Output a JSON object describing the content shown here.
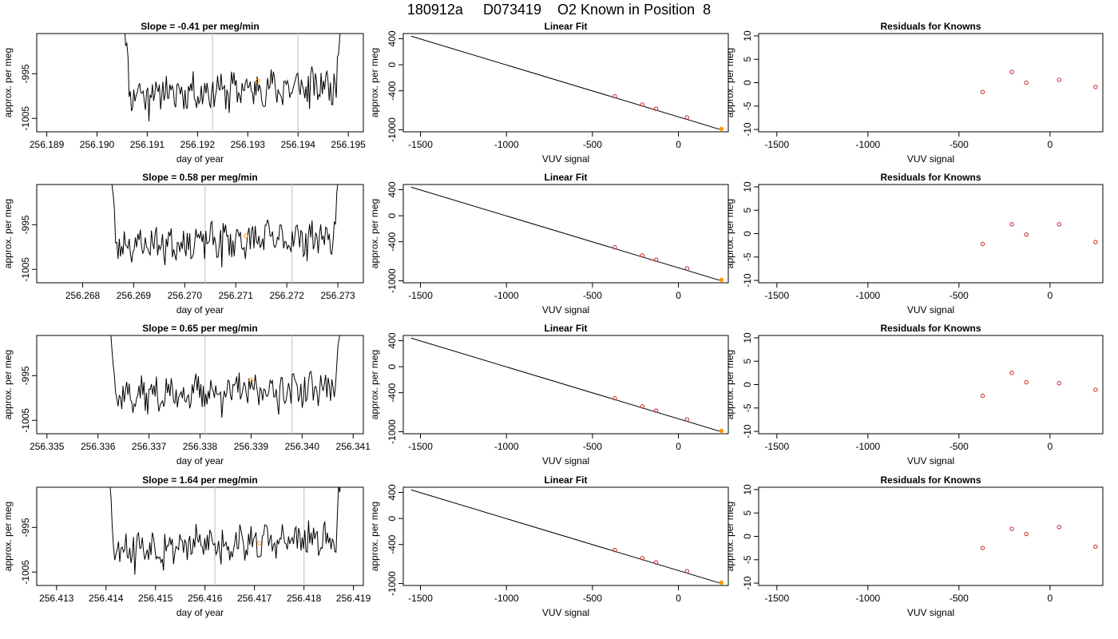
{
  "title": "180912a     D073419    O2 Known in Position  8",
  "chart_data": [
    {
      "row": 0,
      "trace": {
        "type": "line",
        "title": "Slope =  -0.41  per meg/min",
        "xlabel": "day of year",
        "ylabel": "approx. per meg",
        "xlim": [
          256.1888,
          256.1953
        ],
        "ylim": [
          -1008,
          -986
        ],
        "x_ticks": [
          "256.189",
          "256.190",
          "256.191",
          "256.192",
          "256.193",
          "256.194",
          "256.195"
        ],
        "y_ticks": [
          "-995",
          "-1005"
        ],
        "x_start": 256.1905,
        "x_end": 256.1949,
        "vlines": [
          256.1923,
          256.194
        ],
        "marker": {
          "x": 256.1932,
          "y": -996.6
        },
        "seed": 11
      },
      "fit": {
        "type": "line",
        "title": "Linear Fit",
        "xlabel": "VUV signal",
        "ylabel": "approx. per meg",
        "xlim": [
          -1600,
          290
        ],
        "ylim": [
          -1030,
          480
        ],
        "x_ticks": [
          "-1500",
          "-1000",
          "-500",
          "0"
        ],
        "y_ticks": [
          "400",
          "0",
          "-400",
          "-1000"
        ],
        "line": {
          "x": [
            -1555,
            250
          ],
          "y": [
            440,
            -1000
          ]
        },
        "points": {
          "x": [
            -370,
            -210,
            -130,
            50,
            250
          ],
          "y": [
            -485,
            -610,
            -675,
            -810,
            -985
          ]
        }
      },
      "residuals": {
        "type": "scatter",
        "title": "Residuals for Knowns",
        "xlabel": "VUV signal",
        "ylabel": "approx. per meg",
        "xlim": [
          -1600,
          290
        ],
        "ylim": [
          -10.5,
          10.5
        ],
        "x_ticks": [
          "-1500",
          "-1000",
          "-500",
          "0"
        ],
        "y_ticks": [
          "10",
          "5",
          "0",
          "-5",
          "-10"
        ],
        "points": {
          "x": [
            -370,
            -210,
            -130,
            50,
            250
          ],
          "y": [
            -2.0,
            2.3,
            0.0,
            0.6,
            -0.9
          ]
        }
      }
    },
    {
      "row": 1,
      "trace": {
        "type": "line",
        "title": "Slope =  0.58  per meg/min",
        "xlabel": "day of year",
        "ylabel": "approx. per meg",
        "xlim": [
          256.2671,
          256.2735
        ],
        "ylim": [
          -1008,
          -986
        ],
        "x_ticks": [
          "256.268",
          "256.269",
          "256.270",
          "256.271",
          "256.272",
          "256.273"
        ],
        "y_ticks": [
          "-995",
          "-1005"
        ],
        "x_start": 256.2685,
        "x_end": 256.2731,
        "vlines": [
          256.2704,
          256.2721
        ],
        "marker": {
          "x": 256.2712,
          "y": -997.5
        },
        "seed": 23
      },
      "fit": {
        "type": "line",
        "title": "Linear Fit",
        "xlabel": "VUV signal",
        "ylabel": "approx. per meg",
        "xlim": [
          -1600,
          290
        ],
        "ylim": [
          -1030,
          480
        ],
        "x_ticks": [
          "-1500",
          "-1000",
          "-500",
          "0"
        ],
        "y_ticks": [
          "400",
          "0",
          "-400",
          "-1000"
        ],
        "line": {
          "x": [
            -1555,
            250
          ],
          "y": [
            440,
            -1000
          ]
        },
        "points": {
          "x": [
            -370,
            -210,
            -130,
            50,
            250
          ],
          "y": [
            -485,
            -610,
            -675,
            -810,
            -985
          ]
        }
      },
      "residuals": {
        "type": "scatter",
        "title": "Residuals for Knowns",
        "xlabel": "VUV signal",
        "ylabel": "approx. per meg",
        "xlim": [
          -1600,
          290
        ],
        "ylim": [
          -10.5,
          10.5
        ],
        "x_ticks": [
          "-1500",
          "-1000",
          "-500",
          "0"
        ],
        "y_ticks": [
          "10",
          "5",
          "0",
          "-5",
          "-10"
        ],
        "points": {
          "x": [
            -370,
            -210,
            -130,
            50,
            250
          ],
          "y": [
            -2.2,
            2.0,
            -0.2,
            2.0,
            -1.8
          ]
        }
      }
    },
    {
      "row": 2,
      "trace": {
        "type": "line",
        "title": "Slope =  0.65  per meg/min",
        "xlabel": "day of year",
        "ylabel": "approx. per meg",
        "xlim": [
          256.3348,
          256.3412
        ],
        "ylim": [
          -1008,
          -986
        ],
        "x_ticks": [
          "256.335",
          "256.336",
          "256.337",
          "256.338",
          "256.339",
          "256.340",
          "256.341"
        ],
        "y_ticks": [
          "-995",
          "-1005"
        ],
        "x_start": 256.3362,
        "x_end": 256.3408,
        "vlines": [
          256.3381,
          256.3398
        ],
        "marker": {
          "x": 256.339,
          "y": -996.0
        },
        "seed": 37
      },
      "fit": {
        "type": "line",
        "title": "Linear Fit",
        "xlabel": "VUV signal",
        "ylabel": "approx. per meg",
        "xlim": [
          -1600,
          290
        ],
        "ylim": [
          -1030,
          480
        ],
        "x_ticks": [
          "-1500",
          "-1000",
          "-500",
          "0"
        ],
        "y_ticks": [
          "400",
          "0",
          "-400",
          "-1000"
        ],
        "line": {
          "x": [
            -1555,
            250
          ],
          "y": [
            440,
            -1000
          ]
        },
        "points": {
          "x": [
            -370,
            -210,
            -130,
            50,
            250
          ],
          "y": [
            -485,
            -610,
            -675,
            -810,
            -985
          ]
        }
      },
      "residuals": {
        "type": "scatter",
        "title": "Residuals for Knowns",
        "xlabel": "VUV signal",
        "ylabel": "approx. per meg",
        "xlim": [
          -1600,
          290
        ],
        "ylim": [
          -10.5,
          10.5
        ],
        "x_ticks": [
          "-1500",
          "-1000",
          "-500",
          "0"
        ],
        "y_ticks": [
          "10",
          "5",
          "0",
          "-5",
          "-10"
        ],
        "points": {
          "x": [
            -370,
            -210,
            -130,
            50,
            250
          ],
          "y": [
            -2.4,
            2.5,
            0.5,
            0.3,
            -1.1
          ]
        }
      }
    },
    {
      "row": 3,
      "trace": {
        "type": "line",
        "title": "Slope =  1.64  per meg/min",
        "xlabel": "day of year",
        "ylabel": "approx. per meg",
        "xlim": [
          256.4126,
          256.4192
        ],
        "ylim": [
          -1008,
          -986
        ],
        "x_ticks": [
          "256.413",
          "256.414",
          "256.415",
          "256.416",
          "256.417",
          "256.418",
          "256.419"
        ],
        "y_ticks": [
          "-995",
          "-1005"
        ],
        "x_start": 256.414,
        "x_end": 256.4188,
        "vlines": [
          256.4162,
          256.418
        ],
        "marker": {
          "x": 256.4171,
          "y": -998.5
        },
        "seed": 53
      },
      "fit": {
        "type": "line",
        "title": "Linear Fit",
        "xlabel": "VUV signal",
        "ylabel": "approx. per meg",
        "xlim": [
          -1600,
          290
        ],
        "ylim": [
          -1030,
          480
        ],
        "x_ticks": [
          "-1500",
          "-1000",
          "-500",
          "0"
        ],
        "y_ticks": [
          "400",
          "0",
          "-400",
          "-1000"
        ],
        "line": {
          "x": [
            -1555,
            250
          ],
          "y": [
            440,
            -1000
          ]
        },
        "points": {
          "x": [
            -370,
            -210,
            -130,
            50,
            250
          ],
          "y": [
            -485,
            -610,
            -675,
            -810,
            -985
          ]
        }
      },
      "residuals": {
        "type": "scatter",
        "title": "Residuals for Knowns",
        "xlabel": "VUV signal",
        "ylabel": "approx. per meg",
        "xlim": [
          -1600,
          290
        ],
        "ylim": [
          -10.5,
          10.5
        ],
        "x_ticks": [
          "-1500",
          "-1000",
          "-500",
          "0"
        ],
        "y_ticks": [
          "10",
          "5",
          "0",
          "-5",
          "-10"
        ],
        "points": {
          "x": [
            -370,
            -210,
            -130,
            50,
            250
          ],
          "y": [
            -2.5,
            1.6,
            0.5,
            2.0,
            -2.2
          ]
        }
      }
    }
  ]
}
